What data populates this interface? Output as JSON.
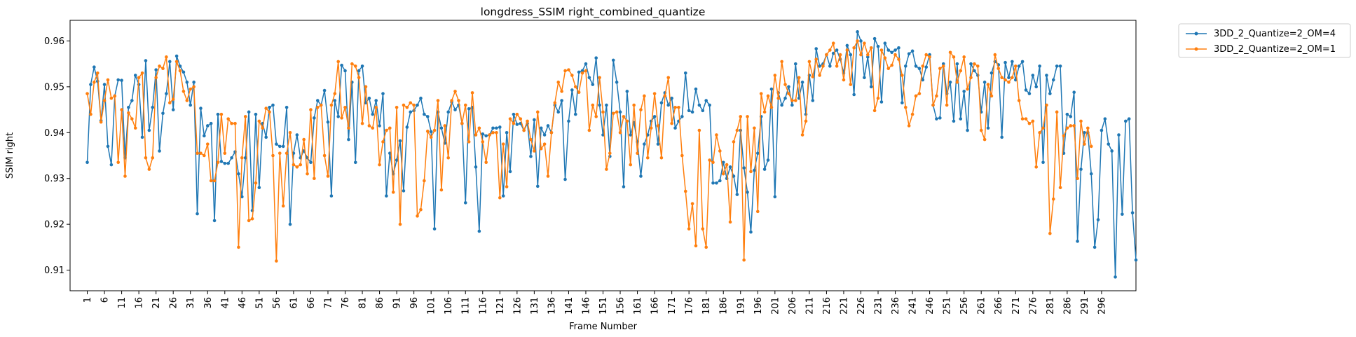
{
  "chart_data": {
    "type": "line",
    "title": "longdress_SSIM right_combined_quantize",
    "xlabel": "Frame Number",
    "ylabel": "SSIM right",
    "xlim": [
      -4,
      306
    ],
    "ylim": [
      0.9055,
      0.9645
    ],
    "yticks": [
      0.91,
      0.92,
      0.93,
      0.94,
      0.95,
      0.96
    ],
    "ytick_labels": [
      "0.91",
      "0.92",
      "0.93",
      "0.94",
      "0.95",
      "0.96"
    ],
    "xticks": [
      1,
      6,
      11,
      16,
      21,
      26,
      31,
      36,
      41,
      46,
      51,
      56,
      61,
      66,
      71,
      76,
      81,
      86,
      91,
      96,
      101,
      106,
      111,
      116,
      121,
      126,
      131,
      136,
      141,
      146,
      151,
      156,
      161,
      166,
      171,
      176,
      181,
      186,
      191,
      196,
      201,
      206,
      211,
      216,
      221,
      226,
      231,
      236,
      241,
      246,
      251,
      256,
      261,
      266,
      271,
      276,
      281,
      286,
      291,
      296
    ],
    "xtick_labels": [
      "1",
      "6",
      "11",
      "16",
      "21",
      "26",
      "31",
      "36",
      "41",
      "46",
      "51",
      "56",
      "61",
      "66",
      "71",
      "76",
      "81",
      "86",
      "91",
      "96",
      "101",
      "106",
      "111",
      "116",
      "121",
      "126",
      "131",
      "136",
      "141",
      "146",
      "151",
      "156",
      "161",
      "166",
      "171",
      "176",
      "181",
      "186",
      "191",
      "196",
      "201",
      "206",
      "211",
      "216",
      "221",
      "226",
      "231",
      "236",
      "241",
      "246",
      "251",
      "256",
      "261",
      "266",
      "271",
      "276",
      "281",
      "286",
      "291",
      "296"
    ],
    "grid": false,
    "legend_position": "outside-top-right",
    "x_start": 1,
    "series": [
      {
        "name": "3DD_2_Quantize=2_OM=4",
        "color": "#1f77b4",
        "values": [
          0.9335,
          0.9505,
          0.9543,
          0.9512,
          0.9426,
          0.9505,
          0.937,
          0.933,
          0.948,
          0.9515,
          0.9514,
          0.9345,
          0.9455,
          0.947,
          0.9525,
          0.9505,
          0.939,
          0.9557,
          0.9405,
          0.9455,
          0.9537,
          0.936,
          0.9442,
          0.9485,
          0.9555,
          0.945,
          0.9567,
          0.9545,
          0.9532,
          0.951,
          0.946,
          0.951,
          0.9223,
          0.9453,
          0.9393,
          0.9415,
          0.942,
          0.9208,
          0.944,
          0.9337,
          0.9333,
          0.9333,
          0.9345,
          0.9358,
          0.931,
          0.926,
          0.9345,
          0.9445,
          0.923,
          0.944,
          0.928,
          0.942,
          0.939,
          0.9455,
          0.946,
          0.9375,
          0.937,
          0.937,
          0.9455,
          0.92,
          0.9355,
          0.9395,
          0.9345,
          0.936,
          0.9345,
          0.9335,
          0.9432,
          0.947,
          0.946,
          0.9492,
          0.9423,
          0.9262,
          0.947,
          0.9435,
          0.9547,
          0.9535,
          0.9385,
          0.951,
          0.9335,
          0.9535,
          0.9545,
          0.9465,
          0.9475,
          0.944,
          0.947,
          0.9415,
          0.9485,
          0.9262,
          0.9355,
          0.931,
          0.934,
          0.9382,
          0.9273,
          0.9412,
          0.9445,
          0.9448,
          0.946,
          0.9475,
          0.944,
          0.9435,
          0.9402,
          0.919,
          0.9445,
          0.941,
          0.9377,
          0.9445,
          0.9467,
          0.945,
          0.946,
          0.942,
          0.9247,
          0.9452,
          0.9455,
          0.9325,
          0.9185,
          0.9397,
          0.9393,
          0.9395,
          0.941,
          0.941,
          0.9412,
          0.9262,
          0.94,
          0.9315,
          0.944,
          0.9418,
          0.942,
          0.9405,
          0.942,
          0.9348,
          0.9428,
          0.9283,
          0.941,
          0.9395,
          0.9415,
          0.94,
          0.946,
          0.9445,
          0.947,
          0.9298,
          0.9425,
          0.9493,
          0.944,
          0.9532,
          0.9535,
          0.955,
          0.952,
          0.9505,
          0.9563,
          0.946,
          0.9395,
          0.946,
          0.9348,
          0.9558,
          0.951,
          0.9445,
          0.9282,
          0.949,
          0.9395,
          0.9422,
          0.938,
          0.9305,
          0.9375,
          0.9395,
          0.9425,
          0.9435,
          0.9375,
          0.9465,
          0.9487,
          0.946,
          0.9475,
          0.941,
          0.9425,
          0.9435,
          0.953,
          0.9448,
          0.9445,
          0.9495,
          0.946,
          0.9448,
          0.947,
          0.946,
          0.929,
          0.929,
          0.9295,
          0.9335,
          0.93,
          0.9325,
          0.9305,
          0.9265,
          0.9405,
          0.9323,
          0.927,
          0.9183,
          0.9318,
          0.9355,
          0.9435,
          0.932,
          0.934,
          0.9495,
          0.926,
          0.9487,
          0.946,
          0.9475,
          0.95,
          0.946,
          0.955,
          0.9475,
          0.951,
          0.944,
          0.9525,
          0.947,
          0.9583,
          0.9545,
          0.955,
          0.957,
          0.9545,
          0.9573,
          0.958,
          0.956,
          0.953,
          0.959,
          0.957,
          0.9483,
          0.962,
          0.96,
          0.952,
          0.9565,
          0.95,
          0.9605,
          0.9588,
          0.9467,
          0.9595,
          0.958,
          0.9575,
          0.958,
          0.9585,
          0.9465,
          0.9545,
          0.9572,
          0.9578,
          0.9545,
          0.954,
          0.9515,
          0.9543,
          0.957,
          0.946,
          0.943,
          0.9432,
          0.955,
          0.9485,
          0.951,
          0.9425,
          0.955,
          0.943,
          0.949,
          0.9405,
          0.955,
          0.9535,
          0.9525,
          0.9445,
          0.951,
          0.941,
          0.953,
          0.9555,
          0.9548,
          0.939,
          0.9553,
          0.952,
          0.9555,
          0.9515,
          0.9545,
          0.9555,
          0.9493,
          0.9485,
          0.9525,
          0.95,
          0.9545,
          0.9335,
          0.9525,
          0.9485,
          0.9515,
          0.9545,
          0.9545,
          0.9355,
          0.944,
          0.9435,
          0.9488,
          0.9163,
          0.932,
          0.94,
          0.94,
          0.931,
          0.915,
          0.921,
          0.9405,
          0.943,
          0.9375,
          0.936,
          0.9085,
          0.9395,
          0.9222,
          0.9425,
          0.943,
          0.9225,
          0.9122
        ]
      },
      {
        "name": "3DD_2_Quantize=2_OM=1",
        "color": "#ff7f0e",
        "values": [
          0.9485,
          0.944,
          0.951,
          0.953,
          0.9423,
          0.947,
          0.9515,
          0.9475,
          0.948,
          0.9335,
          0.945,
          0.9305,
          0.9443,
          0.943,
          0.941,
          0.952,
          0.953,
          0.9345,
          0.932,
          0.9345,
          0.952,
          0.9545,
          0.954,
          0.9565,
          0.9465,
          0.9473,
          0.9555,
          0.9535,
          0.949,
          0.947,
          0.9495,
          0.95,
          0.9355,
          0.9355,
          0.935,
          0.9375,
          0.9295,
          0.9295,
          0.9335,
          0.944,
          0.9355,
          0.943,
          0.942,
          0.942,
          0.915,
          0.9345,
          0.9435,
          0.9208,
          0.9212,
          0.929,
          0.9425,
          0.941,
          0.9453,
          0.9445,
          0.935,
          0.912,
          0.9355,
          0.924,
          0.9355,
          0.94,
          0.933,
          0.9325,
          0.933,
          0.9385,
          0.931,
          0.945,
          0.93,
          0.9455,
          0.946,
          0.935,
          0.9305,
          0.946,
          0.9485,
          0.9555,
          0.9432,
          0.9455,
          0.941,
          0.955,
          0.9545,
          0.952,
          0.942,
          0.95,
          0.9415,
          0.941,
          0.9455,
          0.933,
          0.938,
          0.9405,
          0.941,
          0.927,
          0.9455,
          0.92,
          0.946,
          0.9455,
          0.9465,
          0.946,
          0.9218,
          0.9232,
          0.9295,
          0.9403,
          0.939,
          0.9405,
          0.947,
          0.9275,
          0.9415,
          0.9345,
          0.947,
          0.949,
          0.947,
          0.942,
          0.946,
          0.938,
          0.9487,
          0.9395,
          0.941,
          0.938,
          0.9335,
          0.9395,
          0.94,
          0.94,
          0.9258,
          0.9375,
          0.9282,
          0.943,
          0.942,
          0.944,
          0.943,
          0.9405,
          0.9425,
          0.9385,
          0.936,
          0.9445,
          0.9365,
          0.9375,
          0.9305,
          0.94,
          0.9465,
          0.951,
          0.949,
          0.9535,
          0.9537,
          0.9525,
          0.95,
          0.9488,
          0.953,
          0.9535,
          0.9405,
          0.946,
          0.9435,
          0.952,
          0.9445,
          0.932,
          0.9355,
          0.9442,
          0.9445,
          0.94,
          0.9435,
          0.9425,
          0.933,
          0.946,
          0.9355,
          0.945,
          0.948,
          0.9345,
          0.941,
          0.9485,
          0.9415,
          0.9345,
          0.948,
          0.952,
          0.942,
          0.9455,
          0.9455,
          0.935,
          0.9272,
          0.919,
          0.9245,
          0.9153,
          0.9405,
          0.919,
          0.915,
          0.934,
          0.9335,
          0.9395,
          0.936,
          0.931,
          0.933,
          0.9205,
          0.938,
          0.9405,
          0.9435,
          0.9122,
          0.9435,
          0.9315,
          0.941,
          0.9228,
          0.9485,
          0.9445,
          0.948,
          0.9455,
          0.9525,
          0.9475,
          0.9555,
          0.9505,
          0.9485,
          0.947,
          0.947,
          0.952,
          0.9395,
          0.9425,
          0.9555,
          0.9522,
          0.956,
          0.9525,
          0.9545,
          0.957,
          0.958,
          0.9595,
          0.9545,
          0.957,
          0.9515,
          0.958,
          0.9505,
          0.9585,
          0.96,
          0.957,
          0.9595,
          0.957,
          0.9585,
          0.9448,
          0.9475,
          0.958,
          0.9563,
          0.954,
          0.9547,
          0.957,
          0.956,
          0.9525,
          0.9455,
          0.9415,
          0.944,
          0.948,
          0.9485,
          0.9545,
          0.957,
          0.9565,
          0.946,
          0.948,
          0.954,
          0.9545,
          0.946,
          0.9575,
          0.9565,
          0.951,
          0.9535,
          0.9565,
          0.9495,
          0.952,
          0.955,
          0.9545,
          0.9405,
          0.9385,
          0.9505,
          0.948,
          0.957,
          0.954,
          0.952,
          0.9515,
          0.951,
          0.952,
          0.9545,
          0.947,
          0.943,
          0.943,
          0.942,
          0.9425,
          0.9325,
          0.94,
          0.941,
          0.946,
          0.918,
          0.9255,
          0.9445,
          0.928,
          0.9393,
          0.941,
          0.9415,
          0.9415,
          0.93,
          0.9425,
          0.9375,
          0.941,
          0.937
        ]
      }
    ]
  }
}
